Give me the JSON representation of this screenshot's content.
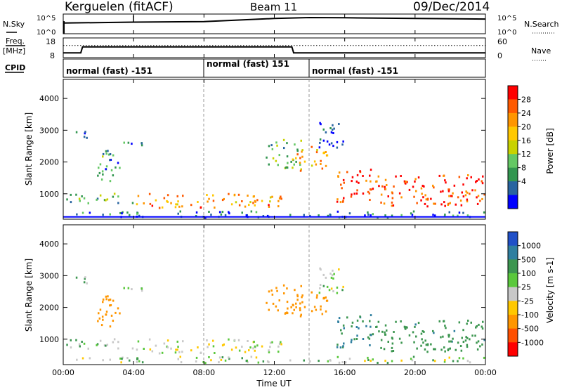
{
  "header": {
    "station": "Kerguelen",
    "fit": "(fitACF)",
    "beam": "Beam 11",
    "date": "09/Dec/2014"
  },
  "nsky_panel": {
    "left_label": "N.Sky",
    "right_label": "N.Search",
    "left_ticks": [
      "10^5",
      "10^0"
    ],
    "right_ticks": [
      "10^5",
      "10^0"
    ]
  },
  "freq_panel": {
    "left_label_1": "Freq.",
    "left_label_2": "[MHz]",
    "left_ticks": [
      "18",
      "8"
    ],
    "right_ticks": [
      "60",
      "0"
    ],
    "right_label": "Nave"
  },
  "cpid": {
    "label": "CPID",
    "segments": [
      {
        "text": "normal (fast) -151",
        "start_hour": 0,
        "end_hour": 8
      },
      {
        "text": "normal (fast) 151",
        "start_hour": 8,
        "end_hour": 13
      },
      {
        "text": "normal (fast) -151",
        "start_hour": 13,
        "end_hour": 24
      }
    ]
  },
  "axes": {
    "ylabel": "Slant Range [km]",
    "yticks": [
      "4000",
      "3000",
      "2000",
      "1000"
    ],
    "xticks": [
      "00:00",
      "04:00",
      "08:00",
      "12:00",
      "16:00",
      "20:00",
      "00:00"
    ],
    "xlabel": "Time UT"
  },
  "power_scale": {
    "label": "Power [dB]",
    "ticks": [
      "28",
      "24",
      "20",
      "16",
      "12",
      "8",
      "4"
    ],
    "colors": [
      "#ff0000",
      "#ff5a00",
      "#ff9600",
      "#ffc800",
      "#c8d200",
      "#64c864",
      "#329650",
      "#2864a0",
      "#0000ff"
    ]
  },
  "velocity_scale": {
    "label": "Velocity [m s-1]",
    "ticks": [
      "1000",
      "500",
      "100",
      "25",
      "-25",
      "-100",
      "-500",
      "-1000"
    ],
    "colors": [
      "#2050c8",
      "#2f7fa0",
      "#3c9650",
      "#5ac83c",
      "#c8c8c8",
      "#ffc800",
      "#ff9600",
      "#ff5000",
      "#ff0000"
    ]
  },
  "chart_data": {
    "type": "heatmap",
    "title": "Kerguelen (fitACF) Beam 11 09/Dec/2014",
    "xlabel": "Time UT",
    "ylabel": "Slant Range [km]",
    "xlim_hours": [
      0,
      24
    ],
    "ylim_km": [
      200,
      4600
    ],
    "grid": "dashed vertical lines at 08:00 and 14:00",
    "panels": [
      "Power [dB]",
      "Velocity [m s-1]"
    ],
    "scatter_regions": [
      {
        "hours": [
          0.5,
          1.5
        ],
        "range_km": [
          2700,
          3000
        ],
        "power_db": 6,
        "velocity": 25
      },
      {
        "hours": [
          1.8,
          3.2
        ],
        "range_km": [
          1300,
          2400
        ],
        "power_db": 10,
        "velocity": -200
      },
      {
        "hours": [
          3.2,
          5.0
        ],
        "range_km": [
          2500,
          2700
        ],
        "power_db": 8,
        "velocity": 20
      },
      {
        "hours": [
          0.0,
          4.0
        ],
        "range_km": [
          700,
          1000
        ],
        "power_db": 12,
        "velocity": 25
      },
      {
        "hours": [
          4.0,
          12.5
        ],
        "range_km": [
          550,
          1000
        ],
        "power_db": 22,
        "velocity": 0
      },
      {
        "hours": [
          11.5,
          13.5
        ],
        "range_km": [
          1800,
          2700
        ],
        "power_db": 12,
        "velocity": -150
      },
      {
        "hours": [
          13.0,
          15.0
        ],
        "range_km": [
          1700,
          2500
        ],
        "power_db": 20,
        "velocity": -200
      },
      {
        "hours": [
          14.5,
          16.0
        ],
        "range_km": [
          2400,
          3300
        ],
        "power_db": 6,
        "velocity": 25
      },
      {
        "hours": [
          15.5,
          17.5
        ],
        "range_km": [
          700,
          1800
        ],
        "power_db": 26,
        "velocity": 300
      },
      {
        "hours": [
          17.5,
          24.0
        ],
        "range_km": [
          600,
          1600
        ],
        "power_db": 26,
        "velocity": 250
      },
      {
        "hours": [
          0.0,
          24.0
        ],
        "range_km": [
          250,
          450
        ],
        "power_db": 8,
        "velocity": 25
      }
    ],
    "nsky_trace": {
      "hours": [
        0,
        4,
        8,
        12,
        14,
        16,
        20,
        24
      ],
      "values": [
        1000,
        2000,
        3000,
        30000,
        60000,
        50000,
        30000,
        20000
      ]
    },
    "freq_mhz": {
      "hours": [
        0,
        1,
        1.1,
        13,
        13.1,
        24
      ],
      "values": [
        10,
        10,
        13.5,
        13.5,
        10,
        10
      ]
    },
    "nave_dotted": 38
  }
}
